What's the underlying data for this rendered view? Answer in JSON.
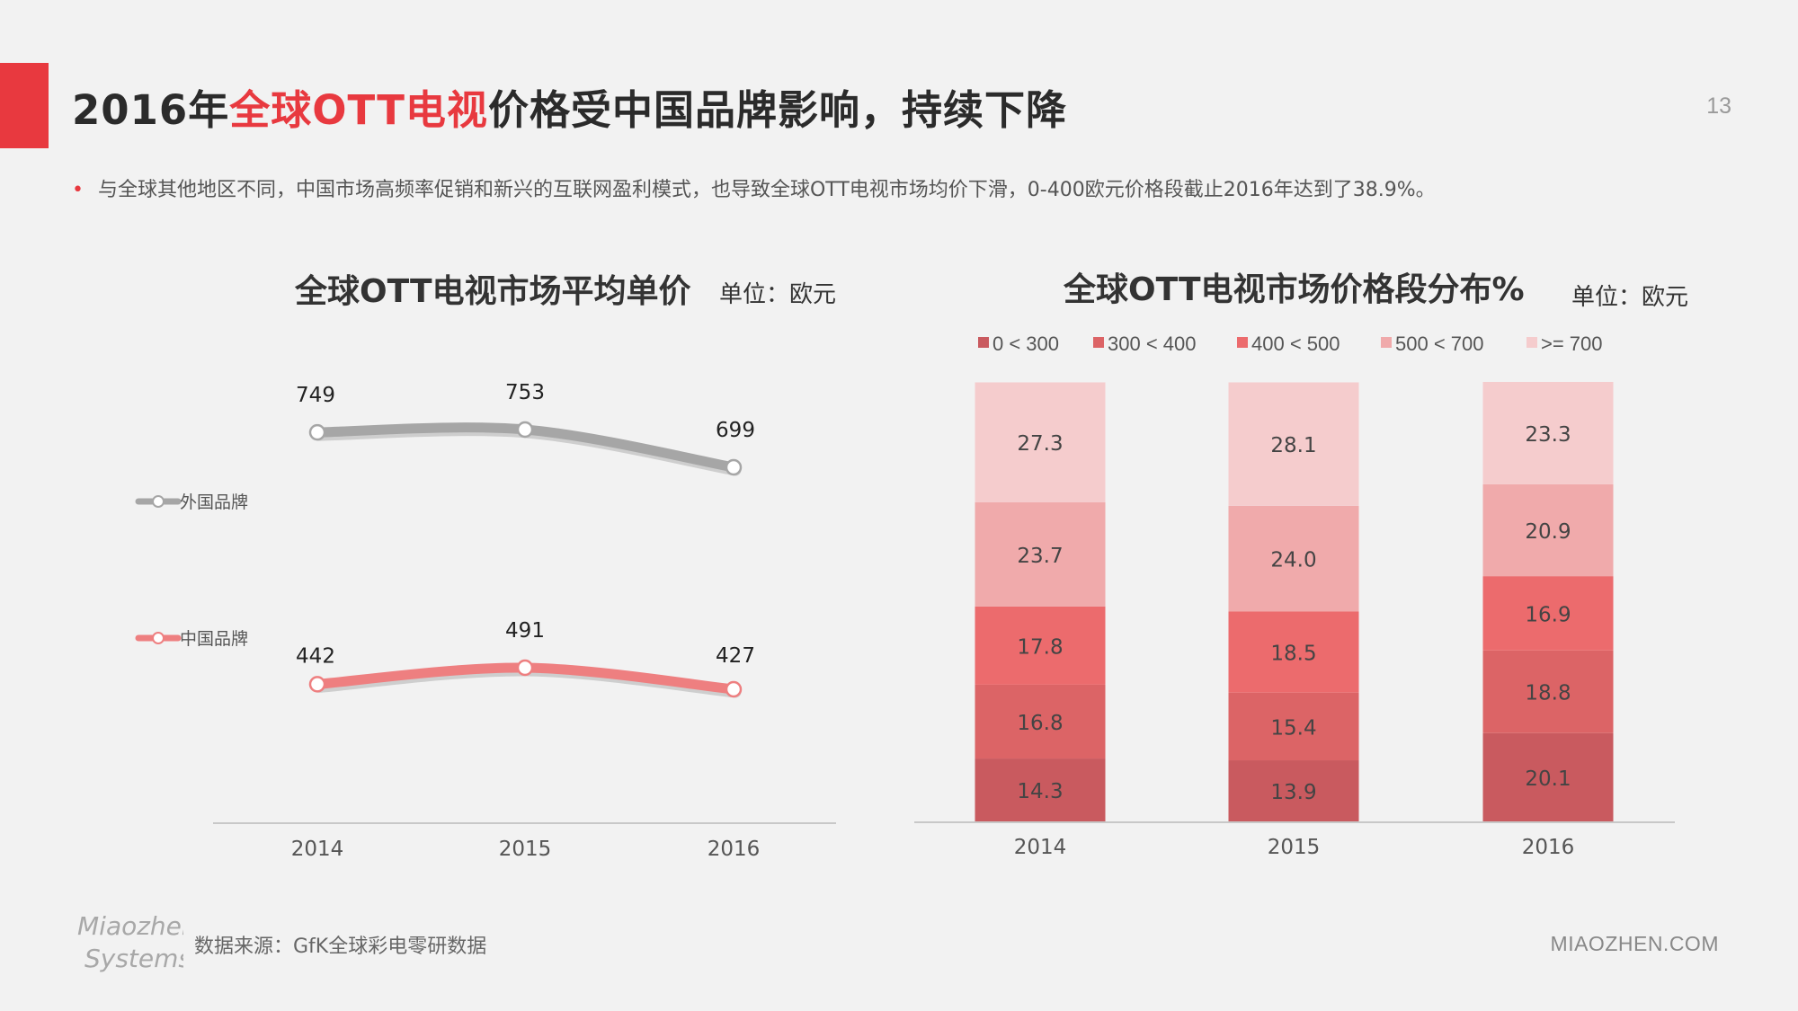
{
  "header": {
    "title_part1": "2016年",
    "title_highlight": "全球OTT电视",
    "title_part2": "价格受中国品牌影响，持续下降",
    "page_number": "13",
    "bullet_text": "与全球其他地区不同，中国市场高频率促销和新兴的互联网盈利模式，也导致全球OTT电视市场均价下滑，0-400欧元价格段截止2016年达到了38.9%。"
  },
  "footer": {
    "logo_line1": "Miaozhen·",
    "logo_line2": "Systems",
    "source": "数据来源：GfK全球彩电零研数据",
    "site": "MIAOZHEN.COM"
  },
  "colors": {
    "accent": "#e8393f",
    "foreign_line": "#a6a6a6",
    "china_line": "#ee7f80",
    "seg_0_300": "#c95a5f",
    "seg_300_400": "#dc6466",
    "seg_400_500": "#ec6b6d",
    "seg_500_700": "#f0aaab",
    "seg_700_plus": "#f5cccd"
  },
  "chart_data": [
    {
      "type": "line",
      "title": "全球OTT电视市场平均单价",
      "unit": "单位：欧元",
      "categories": [
        "2014",
        "2015",
        "2016"
      ],
      "series": [
        {
          "name": "外国品牌",
          "values": [
            749,
            753,
            699
          ]
        },
        {
          "name": "中国品牌",
          "values": [
            442,
            491,
            427
          ]
        }
      ],
      "grid": false,
      "legend": "left"
    },
    {
      "type": "bar",
      "stacked": true,
      "title": "全球OTT电视市场价格段分布%",
      "unit": "单位：欧元",
      "categories": [
        "2014",
        "2015",
        "2016"
      ],
      "series": [
        {
          "name": "0 < 300",
          "values": [
            14.3,
            13.9,
            20.1
          ]
        },
        {
          "name": "300 < 400",
          "values": [
            16.8,
            15.4,
            18.8
          ]
        },
        {
          "name": "400 < 500",
          "values": [
            17.8,
            18.5,
            16.9
          ]
        },
        {
          "name": "500 < 700",
          "values": [
            23.7,
            24.0,
            20.9
          ]
        },
        {
          "name": ">= 700",
          "values": [
            27.3,
            28.1,
            23.3
          ]
        }
      ],
      "ylim": [
        0,
        100
      ],
      "grid": false,
      "legend": "top"
    }
  ]
}
